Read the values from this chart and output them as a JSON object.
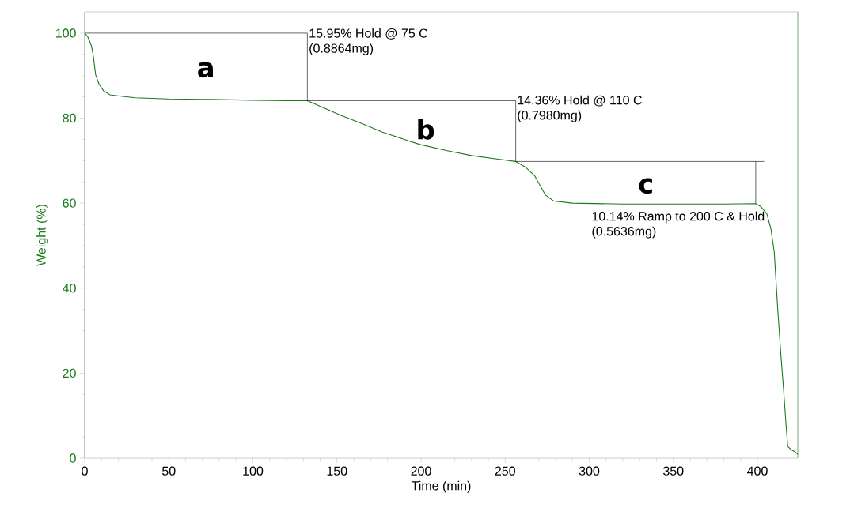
{
  "chart_data": {
    "type": "line",
    "xlabel": "Time (min)",
    "ylabel": "Weight (%)",
    "xlim": [
      0,
      424
    ],
    "ylim": [
      0,
      105
    ],
    "xticks": [
      0,
      50,
      100,
      150,
      200,
      250,
      300,
      350,
      400
    ],
    "yticks": [
      0,
      20,
      40,
      60,
      80,
      100
    ],
    "series": [
      {
        "color": "#1a7a1a",
        "x": [
          0,
          2,
          4,
          5,
          6.5,
          8.5,
          11.3,
          15,
          22.6,
          30,
          50,
          75,
          100,
          120,
          132.4,
          140,
          152.6,
          165,
          177,
          190,
          199.3,
          215,
          230,
          245,
          256.3,
          262,
          267.6,
          274,
          278.9,
          290,
          320,
          350,
          380,
          399,
          402,
          405.6,
          408,
          410,
          412,
          414,
          415.5,
          417,
          418,
          420,
          422,
          424
        ],
        "values": [
          100,
          99,
          97,
          95,
          90.2,
          88,
          86.4,
          85.5,
          85.1,
          84.8,
          84.5,
          84.4,
          84.2,
          84.1,
          84.1,
          82.8,
          80.6,
          78.7,
          76.7,
          75,
          73.8,
          72.4,
          71.2,
          70.4,
          69.8,
          68.5,
          66.4,
          61.9,
          60.5,
          60,
          59.8,
          59.8,
          59.8,
          59.9,
          59.2,
          57.5,
          54,
          48.5,
          35.6,
          24,
          16.4,
          8,
          2.8,
          2,
          1.6,
          0.9
        ]
      },
      {
        "color": "#000000",
        "x": [
          0,
          132.4
        ],
        "values": [
          100,
          100
        ]
      },
      {
        "color": "#000000",
        "x": [
          132.4,
          132.4
        ],
        "values": [
          100,
          84.1
        ]
      },
      {
        "color": "#000000",
        "x": [
          132.4,
          256.3
        ],
        "values": [
          84.1,
          84.1
        ]
      },
      {
        "color": "#000000",
        "x": [
          256.3,
          256.3
        ],
        "values": [
          84.1,
          69.8
        ]
      },
      {
        "color": "#000000",
        "x": [
          256.3,
          404
        ],
        "values": [
          69.8,
          69.8
        ]
      },
      {
        "color": "#000000",
        "x": [
          399,
          399
        ],
        "values": [
          69.8,
          59.9
        ]
      }
    ],
    "annotations": [
      "a",
      "b",
      "c",
      "15.95% Hold @ 75 C",
      "(0.8864mg)",
      "14.36% Hold @ 110 C",
      "(0.7980mg)",
      "10.14% Ramp to 200 C & Hold",
      "(0.5636mg)"
    ]
  }
}
